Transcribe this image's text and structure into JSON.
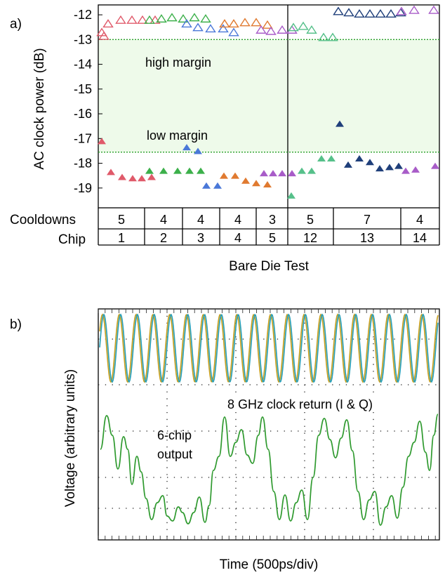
{
  "panel_a": {
    "label": "a)",
    "ylabel": "AC clock power (dB)",
    "xlabel": "Bare Die Test",
    "yticks": [
      -12,
      -13,
      -14,
      -15,
      -16,
      -17,
      -18,
      -19
    ],
    "ylim": [
      -19.8,
      -11.6
    ],
    "high_margin": {
      "label": "high margin",
      "value": -13.0
    },
    "low_margin": {
      "label": "low margin",
      "value": -17.55
    },
    "row_labels": {
      "cooldowns": "Cooldowns",
      "chip": "Chip"
    },
    "groups": [
      {
        "cooldowns": "5",
        "chip": "1"
      },
      {
        "cooldowns": "4",
        "chip": "2"
      },
      {
        "cooldowns": "4",
        "chip": "3"
      },
      {
        "cooldowns": "4",
        "chip": "4"
      },
      {
        "cooldowns": "3",
        "chip": "5"
      },
      {
        "cooldowns": "5",
        "chip": "12"
      },
      {
        "cooldowns": "7",
        "chip": "13"
      },
      {
        "cooldowns": "4",
        "chip": "14"
      }
    ],
    "colors": {
      "chip1": "#e05a6a",
      "chip2": "#3cb04a",
      "chip3": "#4a78d8",
      "chip4": "#e07a30",
      "chip5": "#a85cc8",
      "chip12": "#56c08a",
      "chip13": "#1f3f7a",
      "chip14": "#a85cc8",
      "margin_line": "#2aa02a",
      "margin_fill": "#eefaea"
    }
  },
  "panel_b": {
    "label": "b)",
    "ylabel": "Voltage (arbitrary units)",
    "xlabel": "Time (500ps/div)",
    "clock_label": "8 GHz clock return (I & Q)",
    "output_label_line1": "6-chip",
    "output_label_line2": "output",
    "colors": {
      "clock_i": "#c8a020",
      "clock_q": "#2aa0b8",
      "output": "#2f9a2f",
      "grid": "#222222"
    }
  },
  "chart_data": [
    {
      "type": "scatter",
      "ylabel": "AC clock power (dB)",
      "xlabel": "Bare Die Test",
      "ylim": [
        -19.8,
        -11.6
      ],
      "series": [
        {
          "name": "Chip 1 high",
          "values": [
            -12.7,
            -12.85,
            -12.35,
            -12.2,
            -12.2,
            -12.2,
            -12.2
          ]
        },
        {
          "name": "Chip 1 low",
          "values": [
            -17.1,
            -18.35,
            -18.55,
            -18.6,
            -18.6,
            -18.55
          ]
        },
        {
          "name": "Chip 2 high",
          "values": [
            -12.2,
            -12.15,
            -12.1,
            -12.15,
            -12.1,
            -12.15
          ]
        },
        {
          "name": "Chip 2 low",
          "values": [
            -18.3,
            -18.3,
            -18.3,
            -18.3,
            -18.3
          ]
        },
        {
          "name": "Chip 3 high",
          "values": [
            -12.35,
            -12.5,
            -12.55,
            -12.55,
            -12.7
          ]
        },
        {
          "name": "Chip 3 low",
          "values": [
            -17.35,
            -17.5,
            -18.9,
            -18.9
          ]
        },
        {
          "name": "Chip 4 high",
          "values": [
            -12.35,
            -12.35,
            -12.3,
            -12.3,
            -12.4
          ]
        },
        {
          "name": "Chip 4 low",
          "values": [
            -18.5,
            -18.5,
            -18.7,
            -18.8,
            -18.85
          ]
        },
        {
          "name": "Chip 5 high",
          "values": [
            -12.6,
            -12.65,
            -12.6,
            -12.6
          ]
        },
        {
          "name": "Chip 5 low",
          "values": [
            -18.4,
            -18.4,
            -18.4,
            -18.4
          ]
        },
        {
          "name": "Chip 12 high",
          "values": [
            -12.5,
            -12.45,
            -12.6,
            -12.9,
            -12.9
          ]
        },
        {
          "name": "Chip 12 low",
          "values": [
            -19.3,
            -18.3,
            -18.3,
            -17.8,
            -17.8
          ]
        },
        {
          "name": "Chip 13 high",
          "values": [
            -11.85,
            -11.9,
            -11.95,
            -11.95,
            -11.95,
            -11.95,
            -11.9
          ]
        },
        {
          "name": "Chip 13 low",
          "values": [
            -16.4,
            -18.05,
            -17.8,
            -17.95,
            -18.2,
            -18.15,
            -18.1
          ]
        },
        {
          "name": "Chip 14 high",
          "values": [
            -11.85,
            -11.8,
            -11.8
          ]
        },
        {
          "name": "Chip 14 low",
          "values": [
            -18.3,
            -18.25,
            -18.1
          ]
        }
      ]
    },
    {
      "type": "line",
      "ylabel": "Voltage (arbitrary units)",
      "xlabel": "Time (500ps/div)",
      "series": [
        {
          "name": "8 GHz clock return (I & Q)",
          "cycles": 20
        },
        {
          "name": "6-chip output"
        }
      ]
    }
  ]
}
